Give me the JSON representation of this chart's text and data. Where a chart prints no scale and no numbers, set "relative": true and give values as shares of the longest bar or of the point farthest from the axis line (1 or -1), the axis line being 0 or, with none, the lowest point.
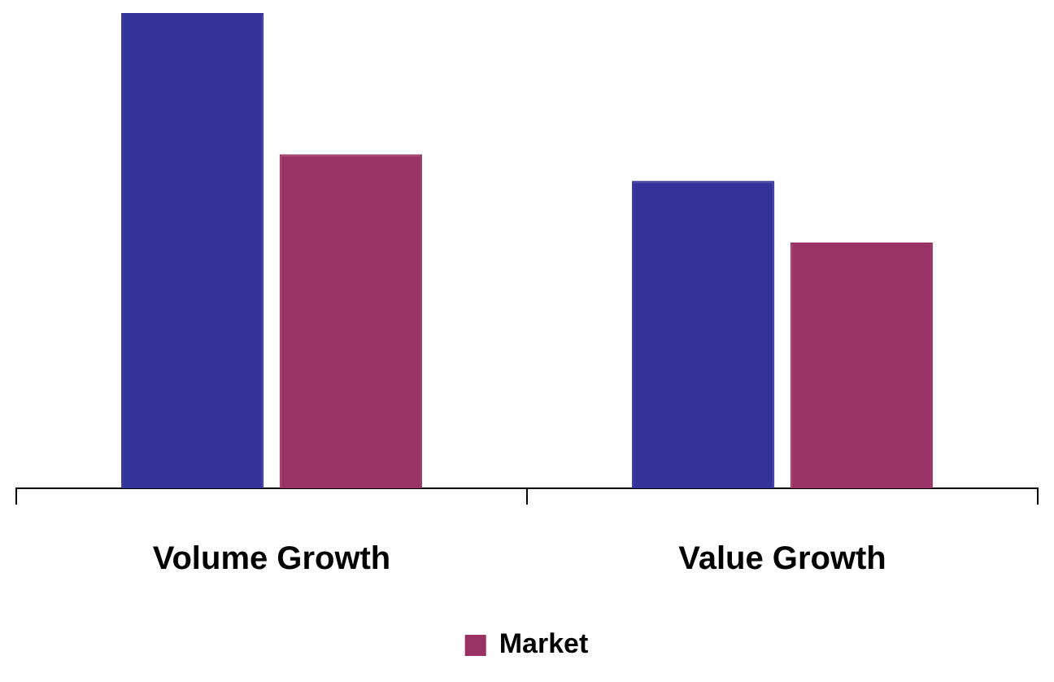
{
  "chart_data": {
    "type": "bar",
    "relative": true,
    "categories": [
      "Volume Growth",
      "Value Growth"
    ],
    "series": [
      {
        "color": "#333399",
        "values": [
          1,
          0.647
        ]
      },
      {
        "name": "Market",
        "color": "#993366",
        "values": [
          0.703,
          0.517
        ]
      }
    ],
    "legend": "bottom",
    "grid": false
  }
}
